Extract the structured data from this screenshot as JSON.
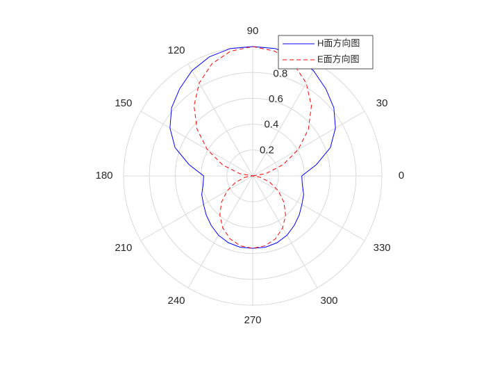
{
  "chart_data": {
    "type": "polar",
    "theta": [
      0,
      10,
      20,
      30,
      40,
      50,
      60,
      70,
      80,
      90,
      100,
      110,
      120,
      130,
      140,
      150,
      160,
      170,
      180,
      190,
      200,
      210,
      220,
      230,
      240,
      250,
      260,
      270,
      280,
      290,
      300,
      310,
      320,
      330,
      340,
      350,
      360
    ],
    "rlim": [
      0,
      1
    ],
    "rticks": [
      0.2,
      0.4,
      0.6,
      0.8
    ],
    "thetaticks": [
      0,
      30,
      60,
      90,
      120,
      150,
      180,
      210,
      240,
      270,
      300,
      330
    ],
    "series": [
      {
        "name": "H面方向图",
        "color": "#0000ff",
        "dash": "solid",
        "values": [
          0.38,
          0.5,
          0.64,
          0.74,
          0.82,
          0.88,
          0.94,
          0.98,
          1.0,
          1.0,
          1.0,
          0.98,
          0.94,
          0.88,
          0.82,
          0.74,
          0.64,
          0.5,
          0.38,
          0.39,
          0.42,
          0.44,
          0.47,
          0.5,
          0.53,
          0.55,
          0.56,
          0.56,
          0.56,
          0.55,
          0.53,
          0.5,
          0.47,
          0.44,
          0.42,
          0.39,
          0.38
        ]
      },
      {
        "name": "E面方向图",
        "color": "#ff0000",
        "dash": "dashed",
        "values": [
          0,
          0.103,
          0.248,
          0.406,
          0.563,
          0.707,
          0.829,
          0.923,
          0.98,
          1.0,
          0.98,
          0.923,
          0.829,
          0.707,
          0.563,
          0.406,
          0.248,
          0.103,
          0,
          0.058,
          0.139,
          0.227,
          0.315,
          0.396,
          0.464,
          0.517,
          0.549,
          0.56,
          0.549,
          0.517,
          0.464,
          0.396,
          0.315,
          0.227,
          0.139,
          0.058,
          0
        ]
      }
    ],
    "legend": "northeast"
  }
}
